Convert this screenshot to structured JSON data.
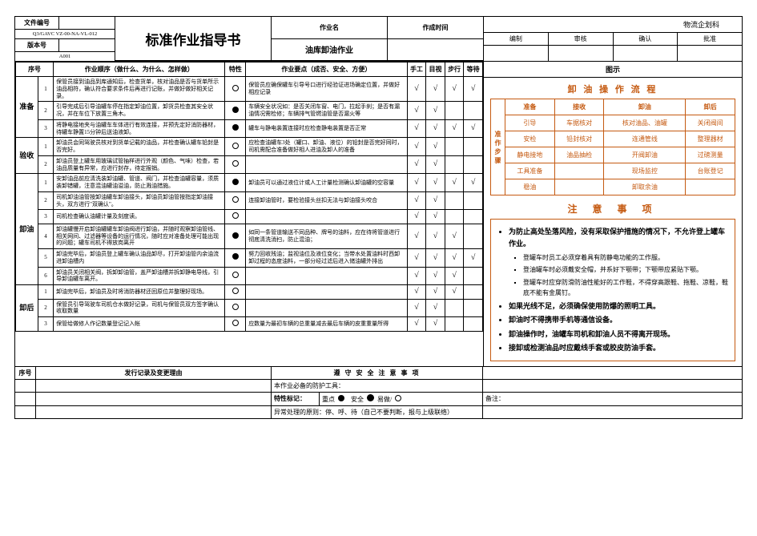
{
  "colors": {
    "accent": "#c55a11",
    "line": "#000000",
    "bg": "#ffffff"
  },
  "header": {
    "doc_no_label": "文件编号",
    "doc_no": "Q3/GAVC VZ-00-NA-VL-012",
    "ver_label": "版本号",
    "ver": "A001",
    "title": "标准作业指导书",
    "job_label": "作业名",
    "job_name": "油库卸油作业",
    "time_label": "作成时间",
    "dept": "物流企划科",
    "signs": [
      "编制",
      "审核",
      "确认",
      "批准"
    ]
  },
  "cols": {
    "seq": "序号",
    "order": "作业顺序（做什么、为什么、怎样做）",
    "feat": "特性",
    "point": "作业要点（成否、安全、方便）",
    "hand": "手工",
    "eye": "目视",
    "walk": "步行",
    "wait": "等待",
    "illus": "图示"
  },
  "phases": {
    "p1": "准备",
    "p2": "验收",
    "p3": "卸油",
    "p4": "卸后"
  },
  "rows": [
    {
      "phase": "p1",
      "no": "1",
      "order": "保管员接到油品到库通知后，检查货单，核对油品是否与货单所示油品相符，确认符合要求条件后再进行记账，并做好做好相关记录。",
      "featOpen": true,
      "point": "保管员应确保罐车引导号口进行经验证进场确定位置，并做好相应记录",
      "h": "√",
      "e": "√",
      "w": "√",
      "t": "√"
    },
    {
      "phase": "p1",
      "no": "2",
      "order": "引导完成后引导油罐车停在指定卸油位置，卸货员检查其安全状况，并在车位下放置三角木。",
      "featSolid": true,
      "point": "车辆安全状况如：是否关闭车窗、电门，拉起手刹；是否有漏油情况需检修；车辆排气管燃油管是否漏火等",
      "h": "√",
      "e": "√",
      "w": "",
      "t": ""
    },
    {
      "phase": "p1",
      "no": "3",
      "order": "将静电接地夹与油罐车车体进行有效连接，并预先定好消防器材，待罐车静置15分钟后送油液卸。",
      "featSolid": true,
      "point": "罐车与静电装置连接时应检查静电装置是否正常",
      "h": "√",
      "e": "√",
      "w": "√",
      "t": "√"
    },
    {
      "phase": "p2",
      "no": "1",
      "order": "卸油员会同驾驶员核对到货单记载的油品，并检查确认罐车铅封是否完好。",
      "featOpen": true,
      "point": "应检查油罐车3处（罐口、卸油、液位）的铅封是否完好同时，司机需配合准备做好相人进油及卸人的准备",
      "h": "√",
      "e": "√",
      "w": "",
      "t": ""
    },
    {
      "phase": "p2",
      "no": "2",
      "order": "卸油员登上罐车用玻璃试管抽样进行外观（颜色、气味）检查，若油品质量有异常，应进行封存，待定报销。",
      "featOpen": true,
      "point": "",
      "h": "√",
      "e": "√",
      "w": "",
      "t": ""
    },
    {
      "phase": "p3",
      "no": "1",
      "order": "安卸油品前应清洗装卸油罐、管道、阀门，并检查油罐容量，须质装卸错罐，注意混油罐油溢油，防止溅油措施。",
      "featSolid": true,
      "point": "卸油员可以通过液位计或人工计量检测确认卸油罐的空容量",
      "h": "√",
      "e": "√",
      "w": "√",
      "t": "√"
    },
    {
      "phase": "p3",
      "no": "2",
      "order": "司机卸油油管按卸油罐车卸油接头，卸油员卸油管按指定卸油接头，双方进行\"双确认\"。",
      "featOpen": true,
      "point": "连接卸油管时，要检验接头丝扣无法与卸油接头咬合",
      "h": "√",
      "e": "√",
      "w": "",
      "t": ""
    },
    {
      "phase": "p3",
      "no": "3",
      "order": "司机检查确认油罐计量及刻度读。",
      "featOpen": true,
      "point": "",
      "h": "√",
      "e": "√",
      "w": "",
      "t": ""
    },
    {
      "phase": "p3",
      "no": "4",
      "order": "卸油罐慢开启卸油罐罐车卸油阀进行卸油，并随时观察卸油管线、相关网间、过滤器等设备的运行情况，随时应对准备处理可能出现的问题；罐车司机不得放岗离开",
      "featSolid": true,
      "point": "如同一条管道输送不同品种、牌号的油料，应在待将管道进行彻底清洗消扫，防止混油；",
      "h": "√",
      "e": "√",
      "w": "√",
      "t": ""
    },
    {
      "phase": "p3",
      "no": "5",
      "order": "卸油完毕后，卸油员登上罐车确认油品卸尽，打开卸油管内余油流进卸油槽内",
      "featSolid": true,
      "point": "努力回收残油；监视油位及液位变化；当带水处置油料时西卸卸过程的态度油料，一部分经过滤后进入储油罐外排出",
      "h": "√",
      "e": "√",
      "w": "√",
      "t": "√"
    },
    {
      "phase": "p3",
      "no": "6",
      "order": "卸油员关闭相关阀，拆卸卸油管，盖严卸油槽并拆卸静电导线，引导卸油罐车离开。",
      "featOpen": true,
      "point": "",
      "h": "√",
      "e": "√",
      "w": "√",
      "t": ""
    },
    {
      "phase": "p4",
      "no": "1",
      "order": "卸油完毕后，卸油员及时将消防器材还回原位并整理好现场。",
      "featOpen": true,
      "point": "",
      "h": "√",
      "e": "√",
      "w": "√",
      "t": ""
    },
    {
      "phase": "p4",
      "no": "2",
      "order": "保管员引导驾驶车司机仓水做好记录，司机与保管员双方签字确认收取数量",
      "featOpen": true,
      "point": "",
      "h": "√",
      "e": "√",
      "w": "",
      "t": ""
    },
    {
      "phase": "p4",
      "no": "3",
      "order": "保管给做修人作记数量登记记入帐",
      "featOpen": true,
      "point": "应数量为最初车辆的总重量减去最后车辆的皮重重量所得",
      "h": "√",
      "e": "√",
      "w": "",
      "t": ""
    }
  ],
  "flow": {
    "title": "卸 油 操 作 流 程",
    "side": [
      "准",
      "作",
      "步",
      "骤"
    ],
    "headers": [
      "准备",
      "接收",
      "卸油",
      "卸后"
    ],
    "rows": [
      [
        "引导",
        "车据核对",
        "核对油品、油罐",
        "关闭阀间"
      ],
      [
        "安检",
        "铅封核对",
        "连通管线",
        "整理器材"
      ],
      [
        "静电接地",
        "油品抽检",
        "开阀卸油",
        "过磅测量"
      ],
      [
        "工具准备",
        "",
        "现场监控",
        "台账登记"
      ],
      [
        "稳油",
        "",
        "卸取余油",
        ""
      ]
    ]
  },
  "notes": {
    "title": "注 意 事 项",
    "items": [
      {
        "text": "为防止高处坠落风险，没有采取保护措施的情况下，不允许登上罐车作业。",
        "sub": [
          "登罐车时员工必须穿着具有防静电功能的工作服。",
          "登油罐车时必须戴安全帽，并系好下颚带；下颚带应紧贴下颚。",
          "登罐车时应穿防滑防油性能好的工作鞋，不得穿高跟鞋、拖鞋、凉鞋，鞋底不能有金属钉。"
        ]
      },
      {
        "text": "如果光线不足，必须确保使用防爆的照明工具。"
      },
      {
        "text": "卸油时不得携带手机等通信设备。"
      },
      {
        "text": "卸油操作时，油罐车司机和卸油人员不得离开现场。"
      },
      {
        "text": "接卸或检测油品时应戴线手套或胶皮防油手套。"
      }
    ]
  },
  "footer": {
    "seq": "序号",
    "issue": "发行记录及变更理由",
    "safety_hdr": "遵 守 安 全 注 意 事 项",
    "tools": "本作业必备的防护工具：",
    "mark_label": "特性标记：",
    "legend_imp": "重点",
    "legend_safe": "安全",
    "legend_easy": "易做/",
    "remark": "备注：",
    "abnormal": "异常处理的原则：停、呼、待（自己不要判断，报与上级联络）"
  }
}
